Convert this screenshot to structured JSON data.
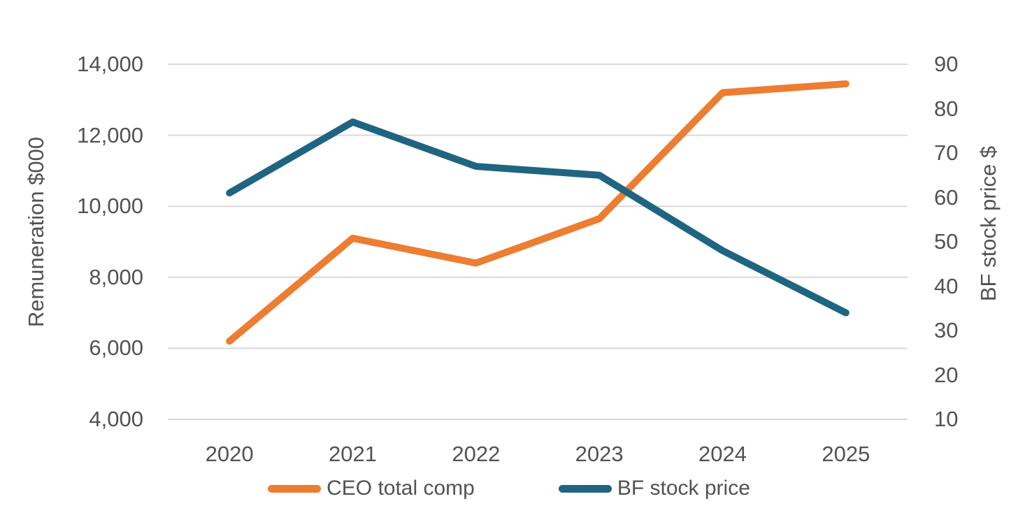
{
  "chart_data": {
    "type": "line",
    "categories": [
      "2020",
      "2021",
      "2022",
      "2023",
      "2024",
      "2025"
    ],
    "series": [
      {
        "name": "CEO total comp",
        "axis": "left",
        "color": "#ED7D31",
        "values": [
          6200,
          9100,
          8400,
          9650,
          13200,
          13450
        ]
      },
      {
        "name": "BF stock price",
        "axis": "right",
        "color": "#1F6582",
        "values": [
          61,
          77,
          67,
          65,
          48,
          34
        ]
      }
    ],
    "left_axis": {
      "title": "Remuneration $000",
      "min": 4000,
      "max": 14000,
      "tick_step": 2000,
      "tick_labels": [
        "4,000",
        "6,000",
        "8,000",
        "10,000",
        "12,000",
        "14,000"
      ]
    },
    "right_axis": {
      "title": "BF stock price $",
      "min": 10,
      "max": 90,
      "tick_step": 10,
      "tick_labels": [
        "10",
        "20",
        "30",
        "40",
        "50",
        "60",
        "70",
        "80",
        "90"
      ]
    },
    "grid": "horizontal",
    "legend_position": "bottom",
    "gridline_color": "#D9D9D9",
    "text_color": "#525252",
    "background_color": "#FFFFFF"
  }
}
